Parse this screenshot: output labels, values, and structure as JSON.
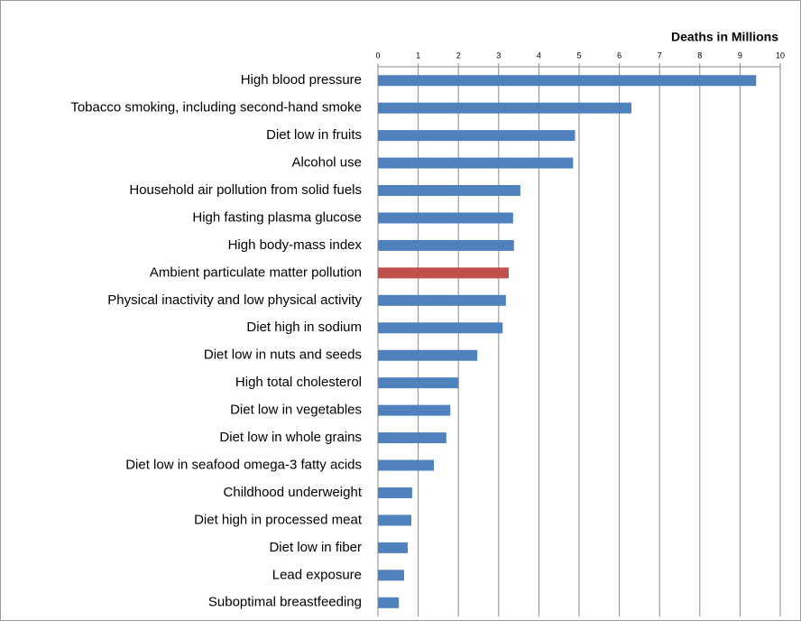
{
  "chart_data": {
    "type": "bar",
    "orientation": "horizontal",
    "x_label": "Deaths in Millions",
    "categories": [
      "High blood pressure",
      "Tobacco smoking, including second-hand smoke",
      "Diet low in fruits",
      "Alcohol use",
      "Household air pollution from solid fuels",
      "High fasting plasma glucose",
      "High body-mass index",
      "Ambient particulate matter pollution",
      "Physical inactivity and low physical activity",
      "Diet high in sodium",
      "Diet low in nuts and seeds",
      "High total cholesterol",
      "Diet low in vegetables",
      "Diet low in whole grains",
      "Diet low in seafood omega-3 fatty acids",
      "Childhood underweight",
      "Diet high in processed meat",
      "Diet low in fiber",
      "Lead exposure",
      "Suboptimal breastfeeding"
    ],
    "values": [
      9.4,
      6.3,
      4.9,
      4.85,
      3.54,
      3.36,
      3.38,
      3.25,
      3.18,
      3.1,
      2.47,
      2.0,
      1.8,
      1.7,
      1.39,
      0.85,
      0.83,
      0.74,
      0.65,
      0.52
    ],
    "colors": [
      "#4f81bd",
      "#4f81bd",
      "#4f81bd",
      "#4f81bd",
      "#4f81bd",
      "#4f81bd",
      "#4f81bd",
      "#c0504d",
      "#4f81bd",
      "#4f81bd",
      "#4f81bd",
      "#4f81bd",
      "#4f81bd",
      "#4f81bd",
      "#4f81bd",
      "#4f81bd",
      "#4f81bd",
      "#4f81bd",
      "#4f81bd",
      "#4f81bd"
    ],
    "xlim": [
      0,
      10
    ],
    "xticks": [
      0,
      1,
      2,
      3,
      4,
      5,
      6,
      7,
      8,
      9,
      10
    ],
    "grid": true
  }
}
